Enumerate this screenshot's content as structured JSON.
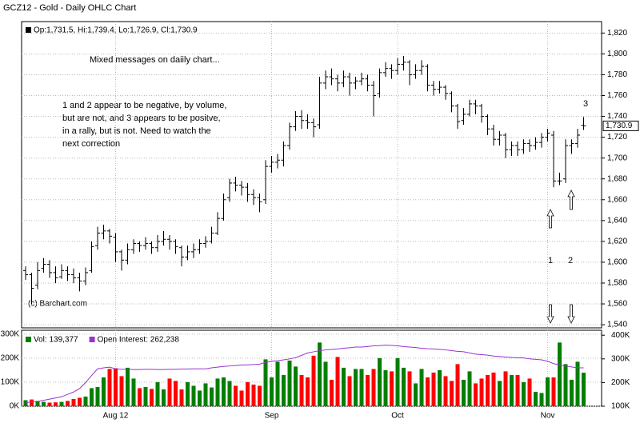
{
  "chart_data": [
    {
      "type": "ohlc",
      "title": "GCZ12 - Gold - Daily OHLC Chart",
      "legend": "Op:1,731.5, Hi:1,739.4, Lo:1,726.9, Cl:1,730.9",
      "last_price_label": "1,730.9",
      "credit": "(c) Barchart.com",
      "color": "#000000",
      "grid": true,
      "annotations": [
        "Mixed messages on daiily chart...",
        "1 and 2 appear to be negative, by volume,",
        "but are not, and 3 appears to be positve,",
        "in a rally, but is not.  Need to watch the",
        "next correction",
        "3",
        "1",
        "2"
      ],
      "ylim": [
        1537,
        1831
      ],
      "yticks": [
        {
          "value": 1540,
          "label": "1,540"
        },
        {
          "value": 1560,
          "label": "1,560"
        },
        {
          "value": 1580,
          "label": "1,580"
        },
        {
          "value": 1600,
          "label": "1,600"
        },
        {
          "value": 1620,
          "label": "1,620"
        },
        {
          "value": 1640,
          "label": "1,640"
        },
        {
          "value": 1660,
          "label": "1,660"
        },
        {
          "value": 1680,
          "label": "1,680"
        },
        {
          "value": 1700,
          "label": "1,700"
        },
        {
          "value": 1720,
          "label": "1,720"
        },
        {
          "value": 1740,
          "label": "1,740"
        },
        {
          "value": 1760,
          "label": "1,760"
        },
        {
          "value": 1780,
          "label": "1,780"
        },
        {
          "value": 1800,
          "label": "1,800"
        },
        {
          "value": 1820,
          "label": "1,820"
        }
      ],
      "open": [
        1592,
        1588,
        1578,
        1594,
        1598,
        1590,
        1586,
        1592,
        1588,
        1585,
        1582,
        1592,
        1616,
        1628,
        1630,
        1624,
        1610,
        1602,
        1612,
        1618,
        1616,
        1618,
        1614,
        1620,
        1622,
        1620,
        1614,
        1605,
        1610,
        1612,
        1618,
        1620,
        1628,
        1642,
        1662,
        1676,
        1674,
        1672,
        1665,
        1662,
        1660,
        1692,
        1696,
        1698,
        1712,
        1730,
        1740,
        1736,
        1734,
        1732,
        1772,
        1778,
        1776,
        1772,
        1778,
        1772,
        1774,
        1776,
        1770,
        1762,
        1782,
        1786,
        1784,
        1790,
        1792,
        1780,
        1784,
        1788,
        1770,
        1766,
        1768,
        1762,
        1750,
        1736,
        1742,
        1752,
        1750,
        1740,
        1728,
        1718,
        1722,
        1708,
        1712,
        1708,
        1714,
        1712,
        1715,
        1720,
        1722,
        1678,
        1680,
        1712,
        1714,
        1731.5
      ],
      "high": [
        1596,
        1590,
        1600,
        1604,
        1602,
        1596,
        1598,
        1596,
        1594,
        1590,
        1595,
        1620,
        1634,
        1636,
        1632,
        1628,
        1612,
        1618,
        1622,
        1620,
        1624,
        1620,
        1626,
        1630,
        1626,
        1622,
        1616,
        1616,
        1618,
        1622,
        1625,
        1634,
        1648,
        1666,
        1680,
        1682,
        1678,
        1676,
        1670,
        1666,
        1698,
        1702,
        1704,
        1716,
        1734,
        1745,
        1746,
        1742,
        1738,
        1778,
        1784,
        1786,
        1780,
        1784,
        1782,
        1778,
        1782,
        1780,
        1774,
        1786,
        1792,
        1790,
        1796,
        1798,
        1794,
        1790,
        1794,
        1790,
        1774,
        1774,
        1770,
        1764,
        1752,
        1748,
        1756,
        1756,
        1752,
        1742,
        1732,
        1726,
        1724,
        1716,
        1716,
        1718,
        1718,
        1720,
        1724,
        1728,
        1726,
        1686,
        1718,
        1718,
        1728,
        1739.4
      ],
      "low": [
        1583,
        1560,
        1574,
        1590,
        1585,
        1580,
        1584,
        1582,
        1580,
        1572,
        1578,
        1590,
        1612,
        1622,
        1618,
        1600,
        1592,
        1598,
        1608,
        1610,
        1612,
        1608,
        1610,
        1616,
        1612,
        1608,
        1596,
        1602,
        1604,
        1608,
        1614,
        1618,
        1626,
        1640,
        1658,
        1668,
        1664,
        1658,
        1655,
        1648,
        1656,
        1686,
        1690,
        1692,
        1708,
        1726,
        1728,
        1728,
        1720,
        1728,
        1766,
        1770,
        1764,
        1768,
        1760,
        1766,
        1770,
        1764,
        1740,
        1758,
        1778,
        1776,
        1780,
        1784,
        1770,
        1776,
        1780,
        1764,
        1760,
        1762,
        1756,
        1744,
        1728,
        1732,
        1740,
        1742,
        1734,
        1722,
        1712,
        1712,
        1700,
        1702,
        1702,
        1704,
        1706,
        1708,
        1710,
        1716,
        1672,
        1674,
        1676,
        1704,
        1710,
        1726.9
      ],
      "close": [
        1588,
        1575,
        1592,
        1598,
        1590,
        1585,
        1592,
        1588,
        1585,
        1582,
        1590,
        1615,
        1628,
        1630,
        1625,
        1610,
        1602,
        1612,
        1618,
        1616,
        1618,
        1614,
        1620,
        1622,
        1620,
        1615,
        1605,
        1610,
        1612,
        1618,
        1620,
        1628,
        1642,
        1660,
        1676,
        1674,
        1672,
        1665,
        1662,
        1658,
        1692,
        1696,
        1698,
        1712,
        1730,
        1740,
        1736,
        1734,
        1730,
        1772,
        1778,
        1776,
        1772,
        1778,
        1772,
        1774,
        1776,
        1770,
        1760,
        1782,
        1786,
        1784,
        1790,
        1792,
        1780,
        1784,
        1788,
        1770,
        1766,
        1768,
        1762,
        1750,
        1735,
        1742,
        1752,
        1750,
        1740,
        1728,
        1718,
        1722,
        1708,
        1712,
        1708,
        1714,
        1712,
        1715,
        1720,
        1724,
        1678,
        1678,
        1712,
        1714,
        1722,
        1730.9
      ]
    },
    {
      "type": "bar",
      "categories": [
        null,
        null,
        null,
        null,
        null,
        null,
        null,
        null,
        null,
        null,
        null,
        null,
        null,
        null,
        null,
        "Aug 12",
        null,
        null,
        null,
        null,
        null,
        null,
        null,
        null,
        null,
        null,
        null,
        null,
        null,
        null,
        null,
        null,
        null,
        null,
        null,
        null,
        null,
        null,
        null,
        null,
        null,
        "Sep",
        null,
        null,
        null,
        null,
        null,
        null,
        null,
        null,
        null,
        null,
        null,
        null,
        null,
        null,
        null,
        null,
        null,
        null,
        null,
        null,
        "Oct",
        null,
        null,
        null,
        null,
        null,
        null,
        null,
        null,
        null,
        null,
        null,
        null,
        null,
        null,
        null,
        null,
        null,
        null,
        null,
        null,
        null,
        null,
        null,
        null,
        "Nov",
        null,
        null,
        null,
        null,
        null,
        null
      ],
      "up_color": "#007f00",
      "down_color": "#ff0000",
      "ylim": [
        0,
        316000
      ],
      "y2lim": [
        100000,
        421000
      ],
      "yticks": [
        {
          "value": 0,
          "label": "0K"
        },
        {
          "value": 100000,
          "label": "100K"
        },
        {
          "value": 200000,
          "label": "200K"
        },
        {
          "value": 300000,
          "label": "300K"
        }
      ],
      "y2ticks": [
        {
          "value": 100000,
          "label": "100K"
        },
        {
          "value": 200000,
          "label": "200K"
        },
        {
          "value": 300000,
          "label": "300K"
        },
        {
          "value": 400000,
          "label": "400K"
        }
      ],
      "series": [
        {
          "name": "Vol: 139,377",
          "color": "#007f00",
          "values": [
            25000,
            28000,
            22000,
            18000,
            15000,
            16000,
            18000,
            22000,
            30000,
            35000,
            40000,
            75000,
            80000,
            120000,
            155000,
            158000,
            125000,
            160000,
            115000,
            75000,
            80000,
            72000,
            100000,
            70000,
            115000,
            105000,
            70000,
            100000,
            85000,
            65000,
            95000,
            78000,
            115000,
            120000,
            105000,
            85000,
            65000,
            100000,
            90000,
            85000,
            195000,
            120000,
            185000,
            130000,
            190000,
            165000,
            130000,
            120000,
            210000,
            265000,
            185000,
            110000,
            205000,
            160000,
            125000,
            155000,
            155000,
            130000,
            155000,
            200000,
            150000,
            145000,
            200000,
            160000,
            145000,
            95000,
            155000,
            120000,
            140000,
            150000,
            125000,
            105000,
            175000,
            110000,
            145000,
            95000,
            115000,
            130000,
            140000,
            105000,
            145000,
            130000,
            130000,
            100000,
            115000,
            60000,
            55000,
            120000,
            120000,
            265000,
            175000,
            110000,
            185000,
            139377
          ]
        },
        {
          "name": "Open Interest: 262,238",
          "color": "#9933cc",
          "axis": "y2",
          "values": [
            115000,
            118000,
            120000,
            125000,
            130000,
            135000,
            140000,
            150000,
            160000,
            175000,
            200000,
            230000,
            258000,
            262000,
            265000,
            258000,
            256000,
            256000,
            255000,
            255000,
            256000,
            256000,
            255000,
            255000,
            256000,
            256000,
            257000,
            257000,
            258000,
            258000,
            258000,
            262000,
            265000,
            268000,
            270000,
            272000,
            274000,
            275000,
            276000,
            278000,
            285000,
            290000,
            292000,
            296000,
            300000,
            305000,
            315000,
            325000,
            330000,
            335000,
            338000,
            340000,
            342000,
            345000,
            347000,
            350000,
            350000,
            352000,
            355000,
            356000,
            358000,
            357000,
            355000,
            352000,
            350000,
            348000,
            345000,
            343000,
            342000,
            340000,
            338000,
            335000,
            332000,
            330000,
            325000,
            320000,
            318000,
            316000,
            312000,
            310000,
            308000,
            306000,
            305000,
            304000,
            300000,
            298000,
            296000,
            290000,
            280000,
            275000,
            270000,
            266000,
            262000,
            262238
          ]
        }
      ]
    }
  ]
}
